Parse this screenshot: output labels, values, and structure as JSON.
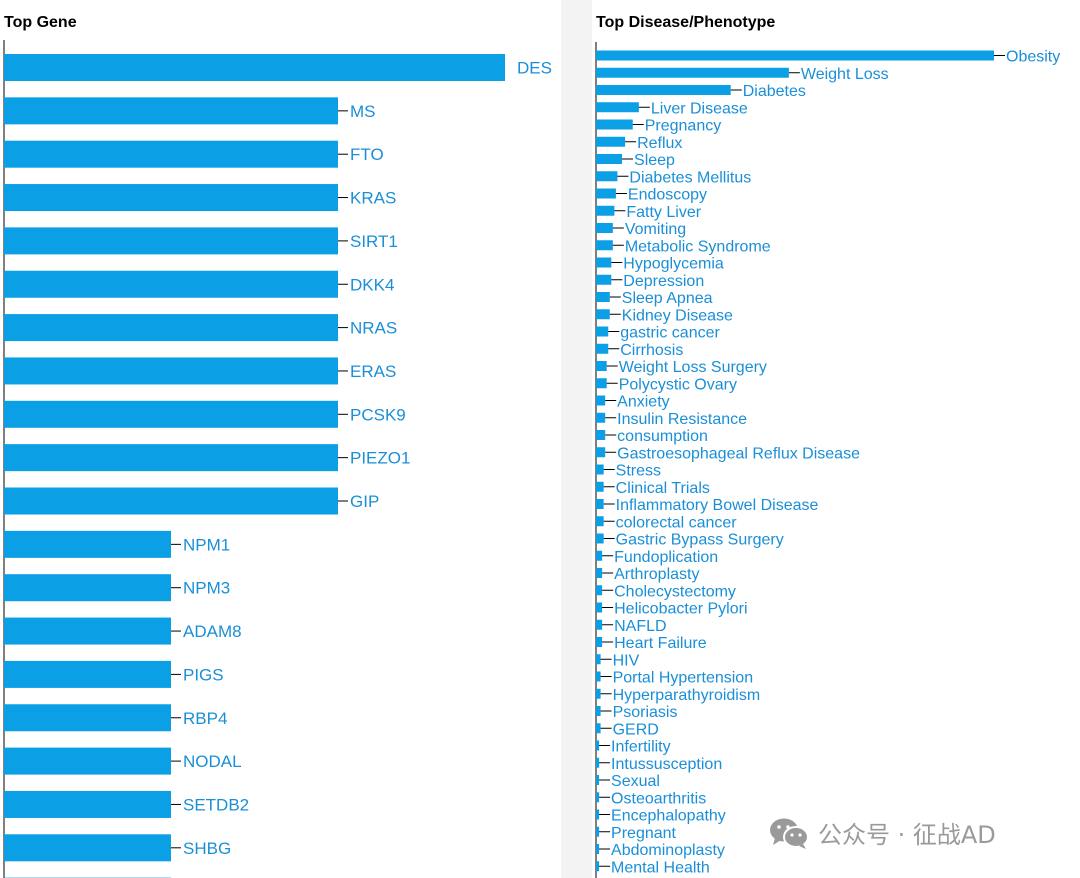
{
  "colors": {
    "bar": "#0b9fe6",
    "label": "#1a8fd8",
    "axis": "#000000",
    "title": "#000000",
    "watermark": "#9a9a9a"
  },
  "chart_data": [
    {
      "type": "bar",
      "orientation": "horizontal",
      "title": "Top Gene",
      "categories": [
        "DES",
        "MS",
        "FTO",
        "KRAS",
        "SIRT1",
        "DKK4",
        "NRAS",
        "ERAS",
        "PCSK9",
        "PIEZO1",
        "GIP",
        "NPM1",
        "NPM3",
        "ADAM8",
        "PIGS",
        "RBP4",
        "NODAL",
        "SETDB2",
        "SHBG"
      ],
      "values": [
        3,
        2,
        2,
        2,
        2,
        2,
        2,
        2,
        2,
        2,
        2,
        1,
        1,
        1,
        1,
        1,
        1,
        1,
        1
      ],
      "xlim": [
        0,
        3
      ],
      "grid": false,
      "legend": "none"
    },
    {
      "type": "bar",
      "orientation": "horizontal",
      "title": "Top Disease/Phenotype",
      "categories": [
        "Obesity",
        "Weight Loss",
        "Diabetes",
        "Liver Disease",
        "Pregnancy",
        "Reflux",
        "Sleep",
        "Diabetes Mellitus",
        "Endoscopy",
        "Fatty Liver",
        "Vomiting",
        "Metabolic Syndrome",
        "Hypoglycemia",
        "Depression",
        "Sleep Apnea",
        "Kidney Disease",
        "gastric cancer",
        "Cirrhosis",
        "Weight Loss Surgery",
        "Polycystic Ovary",
        "Anxiety",
        "Insulin Resistance",
        "consumption",
        "Gastroesophageal Reflux Disease",
        "Stress",
        "Clinical Trials",
        "Inflammatory Bowel Disease",
        "colorectal cancer",
        "Gastric Bypass Surgery",
        "Fundoplication",
        "Arthroplasty",
        "Cholecystectomy",
        "Helicobacter Pylori",
        "NAFLD",
        "Heart Failure",
        "HIV",
        "Portal Hypertension",
        "Hyperparathyroidism",
        "Psoriasis",
        "GERD",
        "Infertility",
        "Intussusception",
        "Sexual",
        "Osteoarthritis",
        "Encephalopathy",
        "Pregnant",
        "Abdominoplasty",
        "Mental Health"
      ],
      "values": [
        260,
        126,
        88,
        28,
        24,
        19,
        17,
        14,
        13,
        12,
        11,
        11,
        10,
        10,
        9,
        9,
        8,
        8,
        7,
        7,
        6,
        6,
        6,
        6,
        5,
        5,
        5,
        5,
        5,
        4,
        4,
        4,
        4,
        4,
        4,
        3,
        3,
        3,
        3,
        3,
        2,
        2,
        2,
        2,
        2,
        2,
        2,
        2
      ],
      "xlim": [
        0,
        260
      ],
      "grid": false,
      "legend": "none"
    }
  ],
  "watermark": {
    "icon": "wechat-icon",
    "text": "公众号 · 征战AD"
  }
}
